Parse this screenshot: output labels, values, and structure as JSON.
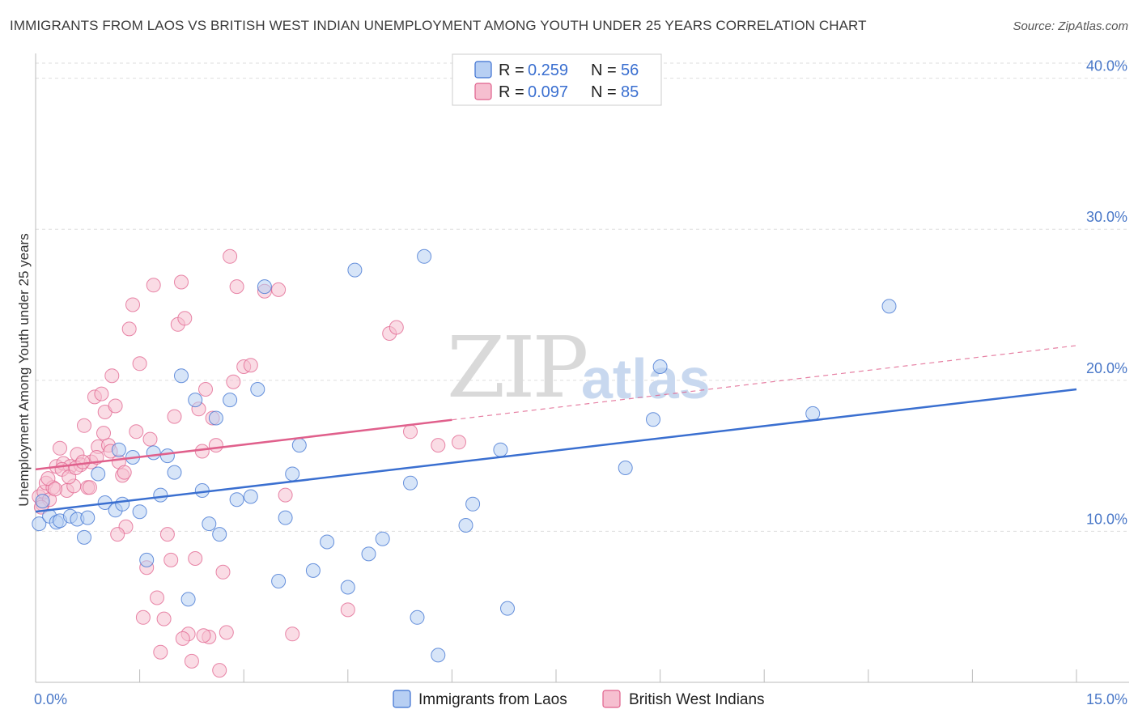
{
  "title": "IMMIGRANTS FROM LAOS VS BRITISH WEST INDIAN UNEMPLOYMENT AMONG YOUTH UNDER 25 YEARS CORRELATION CHART",
  "source": "Source: ZipAtlas.com",
  "watermark": {
    "zip": "ZIP",
    "atlas": "atlas"
  },
  "colors": {
    "blue": "#3a6fd0",
    "blue_fill": "#b7cff3",
    "pink": "#e0608c",
    "pink_fill": "#f6bfd0",
    "axis_label": "#4a78c8",
    "grid": "#dddddd"
  },
  "legend": {
    "rows": [
      {
        "r_label": "R =",
        "r_value": "0.259",
        "n_label": "N =",
        "n_value": "56"
      },
      {
        "r_label": "R =",
        "r_value": "0.097",
        "n_label": "N =",
        "n_value": "85"
      }
    ]
  },
  "chart_data": {
    "type": "scatter",
    "title": "IMMIGRANTS FROM LAOS VS BRITISH WEST INDIAN UNEMPLOYMENT AMONG YOUTH UNDER 25 YEARS CORRELATION CHART",
    "xlabel": "",
    "ylabel": "Unemployment Among Youth under 25 years",
    "xlim": [
      0,
      15
    ],
    "ylim": [
      0,
      41
    ],
    "x_tick_labels": [
      {
        "value": 0,
        "label": "0.0%"
      },
      {
        "value": 15,
        "label": "15.0%"
      }
    ],
    "y_ticks": [
      {
        "value": 10,
        "label": "10.0%"
      },
      {
        "value": 20,
        "label": "20.0%"
      },
      {
        "value": 30,
        "label": "30.0%"
      },
      {
        "value": 40,
        "label": "40.0%"
      }
    ],
    "series": [
      {
        "name": "Immigrants from Laos",
        "color": "#3a6fd0",
        "trend": {
          "x": [
            0,
            15
          ],
          "y": [
            11.3,
            19.4
          ],
          "dashed_from": null
        },
        "points": [
          [
            0.05,
            10.5
          ],
          [
            0.1,
            12
          ],
          [
            0.2,
            11
          ],
          [
            0.3,
            10.6
          ],
          [
            0.35,
            10.7
          ],
          [
            0.5,
            11
          ],
          [
            0.6,
            10.8
          ],
          [
            0.7,
            9.6
          ],
          [
            0.75,
            10.9
          ],
          [
            0.9,
            13.8
          ],
          [
            1.0,
            11.9
          ],
          [
            1.15,
            11.4
          ],
          [
            1.25,
            11.8
          ],
          [
            1.2,
            15.4
          ],
          [
            1.4,
            14.9
          ],
          [
            1.5,
            11.3
          ],
          [
            1.6,
            8.1
          ],
          [
            1.7,
            15.2
          ],
          [
            1.8,
            12.4
          ],
          [
            1.9,
            15
          ],
          [
            2.0,
            13.9
          ],
          [
            2.1,
            20.3
          ],
          [
            2.2,
            5.5
          ],
          [
            2.3,
            18.7
          ],
          [
            2.4,
            12.7
          ],
          [
            2.5,
            10.5
          ],
          [
            2.6,
            17.5
          ],
          [
            2.65,
            9.8
          ],
          [
            2.8,
            18.7
          ],
          [
            2.9,
            12.1
          ],
          [
            3.1,
            12.3
          ],
          [
            3.2,
            19.4
          ],
          [
            3.3,
            26.2
          ],
          [
            3.5,
            6.7
          ],
          [
            3.6,
            10.9
          ],
          [
            3.7,
            13.8
          ],
          [
            3.8,
            15.7
          ],
          [
            4.0,
            7.4
          ],
          [
            4.2,
            9.3
          ],
          [
            4.5,
            6.3
          ],
          [
            4.6,
            27.3
          ],
          [
            4.8,
            8.5
          ],
          [
            5.0,
            9.5
          ],
          [
            5.4,
            13.2
          ],
          [
            5.5,
            4.3
          ],
          [
            5.6,
            28.2
          ],
          [
            5.8,
            1.8
          ],
          [
            6.2,
            10.4
          ],
          [
            6.3,
            11.8
          ],
          [
            6.7,
            15.4
          ],
          [
            6.8,
            4.9
          ],
          [
            8.5,
            14.2
          ],
          [
            8.9,
            17.4
          ],
          [
            9.0,
            20.9
          ],
          [
            11.2,
            17.8
          ],
          [
            12.3,
            24.9
          ]
        ]
      },
      {
        "name": "British West Indians",
        "color": "#e0608c",
        "trend": {
          "x": [
            0,
            15
          ],
          "y": [
            14.1,
            22.3
          ],
          "dashed_from": 6.0
        },
        "points": [
          [
            0.05,
            12.3
          ],
          [
            0.1,
            11.8
          ],
          [
            0.12,
            12.6
          ],
          [
            0.15,
            13.2
          ],
          [
            0.2,
            12.1
          ],
          [
            0.25,
            12.9
          ],
          [
            0.3,
            14.3
          ],
          [
            0.35,
            15.5
          ],
          [
            0.4,
            14.5
          ],
          [
            0.45,
            12.7
          ],
          [
            0.5,
            14.3
          ],
          [
            0.55,
            13
          ],
          [
            0.6,
            15.1
          ],
          [
            0.65,
            14.4
          ],
          [
            0.7,
            17
          ],
          [
            0.75,
            12.9
          ],
          [
            0.8,
            14.6
          ],
          [
            0.85,
            18.9
          ],
          [
            0.9,
            15.6
          ],
          [
            0.95,
            19.1
          ],
          [
            1.0,
            17.9
          ],
          [
            1.05,
            15.7
          ],
          [
            1.1,
            20.3
          ],
          [
            1.15,
            18.3
          ],
          [
            1.2,
            14.6
          ],
          [
            1.25,
            13.7
          ],
          [
            1.3,
            10.3
          ],
          [
            1.35,
            23.4
          ],
          [
            1.4,
            25
          ],
          [
            1.45,
            16.6
          ],
          [
            1.5,
            21.1
          ],
          [
            1.55,
            4.3
          ],
          [
            1.6,
            7.6
          ],
          [
            1.65,
            16.1
          ],
          [
            1.7,
            26.3
          ],
          [
            1.75,
            5.6
          ],
          [
            1.8,
            2
          ],
          [
            1.85,
            4.2
          ],
          [
            1.9,
            9.8
          ],
          [
            1.95,
            8.1
          ],
          [
            2.0,
            17.6
          ],
          [
            2.05,
            23.7
          ],
          [
            2.1,
            26.5
          ],
          [
            2.15,
            24.1
          ],
          [
            2.2,
            3.2
          ],
          [
            2.25,
            1.4
          ],
          [
            2.3,
            8.2
          ],
          [
            2.35,
            18.1
          ],
          [
            2.4,
            15.3
          ],
          [
            2.45,
            19.4
          ],
          [
            2.5,
            3
          ],
          [
            2.55,
            17.5
          ],
          [
            2.6,
            15.7
          ],
          [
            2.65,
            0.8
          ],
          [
            2.7,
            7.3
          ],
          [
            2.75,
            3.3
          ],
          [
            2.8,
            28.2
          ],
          [
            2.85,
            19.9
          ],
          [
            2.9,
            26.2
          ],
          [
            3.0,
            20.9
          ],
          [
            3.1,
            21
          ],
          [
            3.3,
            25.9
          ],
          [
            3.5,
            26
          ],
          [
            3.6,
            12.4
          ],
          [
            3.7,
            3.2
          ],
          [
            4.5,
            4.8
          ],
          [
            5.1,
            23.1
          ],
          [
            5.2,
            23.5
          ],
          [
            5.4,
            16.6
          ],
          [
            5.8,
            15.7
          ],
          [
            6.1,
            15.9
          ],
          [
            0.08,
            11.6
          ],
          [
            0.18,
            13.5
          ],
          [
            0.28,
            12.8
          ],
          [
            0.38,
            14.1
          ],
          [
            0.48,
            13.6
          ],
          [
            0.58,
            14.2
          ],
          [
            0.68,
            14.6
          ],
          [
            0.78,
            12.9
          ],
          [
            0.88,
            14.9
          ],
          [
            0.98,
            16.5
          ],
          [
            1.08,
            15.3
          ],
          [
            1.18,
            9.8
          ],
          [
            1.28,
            13.9
          ],
          [
            2.12,
            2.9
          ],
          [
            2.42,
            3.1
          ]
        ]
      }
    ],
    "legend_entries": [
      "Immigrants from Laos",
      "British West Indians"
    ]
  }
}
